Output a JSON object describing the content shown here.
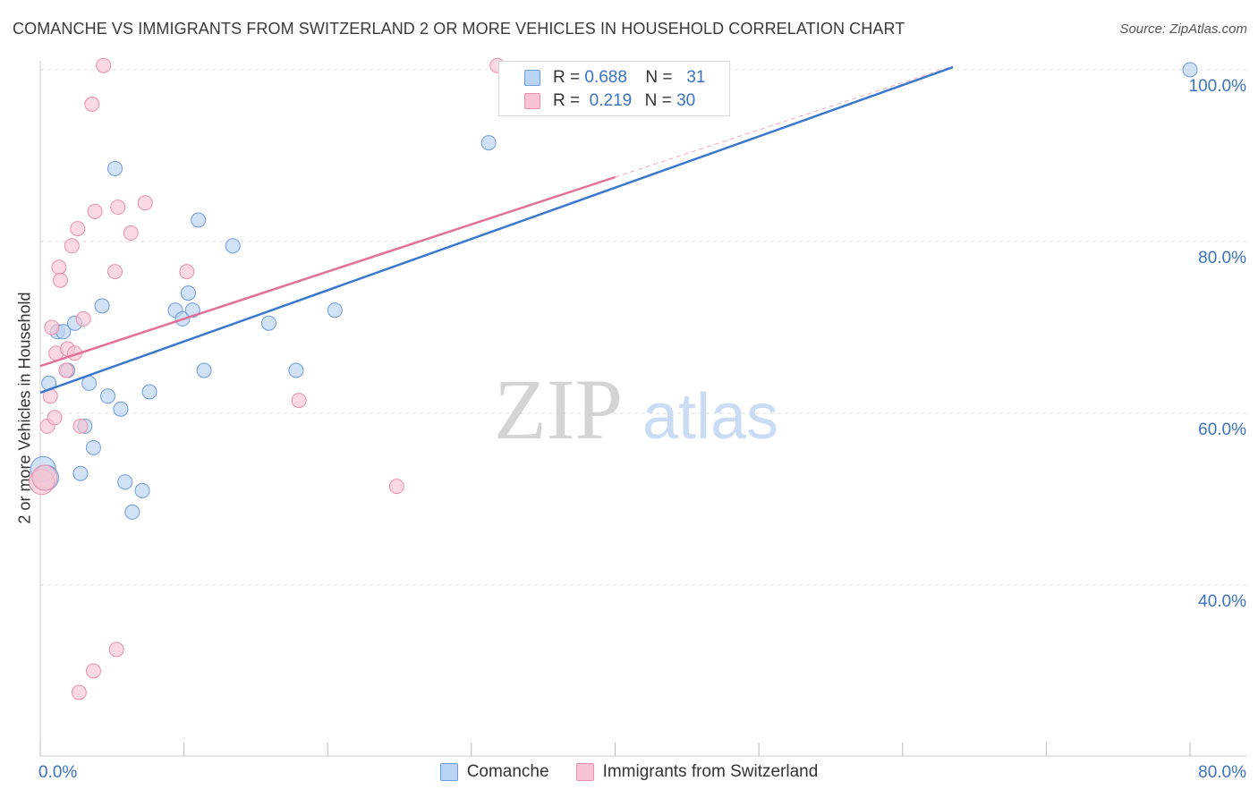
{
  "header": {
    "title": "COMANCHE VS IMMIGRANTS FROM SWITZERLAND 2 OR MORE VEHICLES IN HOUSEHOLD CORRELATION CHART",
    "source": "Source: ZipAtlas.com"
  },
  "watermark": {
    "zip": "ZIP",
    "atlas": "atlas"
  },
  "legend": {
    "rows": [
      {
        "r_label": "R =",
        "r_value": "0.688",
        "n_label": "N =",
        "n_value": "31"
      },
      {
        "r_label": "R =",
        "r_value": "0.219",
        "n_label": "N =",
        "n_value": "30"
      }
    ]
  },
  "colors": {
    "comanche_fill": "#b9d3f3",
    "comanche_stroke": "#6b9be0",
    "comanche_line": "#3a78cf",
    "swiss_fill": "#f8c4d3",
    "swiss_stroke": "#ec8eaa",
    "swiss_line": "#e27097",
    "axis_text": "#3b73c4",
    "grid": "#dddddd"
  },
  "chart_data": {
    "type": "scatter",
    "title": "COMANCHE VS IMMIGRANTS FROM SWITZERLAND 2 OR MORE VEHICLES IN HOUSEHOLD CORRELATION CHART",
    "xlabel": "",
    "ylabel": "2 or more Vehicles in Household",
    "x_tick_labels": [
      "0.0%",
      "80.0%"
    ],
    "y_tick_labels": [
      "40.0%",
      "60.0%",
      "80.0%",
      "100.0%"
    ],
    "xlim": [
      0,
      80
    ],
    "ylim": [
      22,
      101
    ],
    "grid": true,
    "legend_position": "bottom",
    "series": [
      {
        "name": "Comanche",
        "r": 0.688,
        "n": 31,
        "trend": {
          "x": [
            0,
            63.5
          ],
          "y": [
            62.4,
            100.3
          ]
        },
        "points": [
          [
            0.2,
            53.5
          ],
          [
            0.4,
            52.5
          ],
          [
            0.6,
            63.5
          ],
          [
            1.2,
            69.5
          ],
          [
            1.6,
            69.5
          ],
          [
            1.9,
            65.0
          ],
          [
            2.4,
            70.5
          ],
          [
            2.8,
            53.0
          ],
          [
            3.1,
            58.5
          ],
          [
            3.4,
            63.5
          ],
          [
            3.7,
            56.0
          ],
          [
            4.3,
            72.5
          ],
          [
            4.7,
            62.0
          ],
          [
            5.2,
            88.5
          ],
          [
            5.6,
            60.5
          ],
          [
            5.9,
            52.0
          ],
          [
            6.4,
            48.5
          ],
          [
            7.1,
            51.0
          ],
          [
            7.6,
            62.5
          ],
          [
            9.4,
            72.0
          ],
          [
            9.9,
            71.0
          ],
          [
            10.3,
            74.0
          ],
          [
            10.6,
            72.0
          ],
          [
            11.0,
            82.5
          ],
          [
            11.4,
            65.0
          ],
          [
            13.4,
            79.5
          ],
          [
            15.9,
            70.5
          ],
          [
            17.8,
            65.0
          ],
          [
            20.5,
            72.0
          ],
          [
            31.2,
            91.5
          ],
          [
            80.0,
            100.0
          ]
        ]
      },
      {
        "name": "Immigrants from Switzerland",
        "r": 0.219,
        "n": 30,
        "trend": {
          "x": [
            0,
            40
          ],
          "y": [
            65.5,
            87.5
          ]
        },
        "points": [
          [
            0.1,
            52.0
          ],
          [
            0.3,
            52.5
          ],
          [
            0.5,
            58.5
          ],
          [
            0.7,
            62.0
          ],
          [
            0.8,
            70.0
          ],
          [
            1.0,
            59.5
          ],
          [
            1.1,
            67.0
          ],
          [
            1.3,
            77.0
          ],
          [
            1.4,
            75.5
          ],
          [
            1.8,
            65.0
          ],
          [
            1.9,
            67.5
          ],
          [
            2.2,
            79.5
          ],
          [
            2.4,
            67.0
          ],
          [
            2.6,
            81.5
          ],
          [
            2.7,
            27.5
          ],
          [
            2.8,
            58.5
          ],
          [
            3.0,
            71.0
          ],
          [
            3.7,
            30.0
          ],
          [
            3.6,
            96.0
          ],
          [
            3.8,
            83.5
          ],
          [
            4.4,
            100.5
          ],
          [
            5.2,
            76.5
          ],
          [
            5.3,
            32.5
          ],
          [
            5.4,
            84.0
          ],
          [
            6.3,
            81.0
          ],
          [
            7.3,
            84.5
          ],
          [
            10.2,
            76.5
          ],
          [
            18.0,
            61.5
          ],
          [
            24.8,
            51.5
          ],
          [
            31.8,
            100.5
          ]
        ]
      }
    ]
  }
}
